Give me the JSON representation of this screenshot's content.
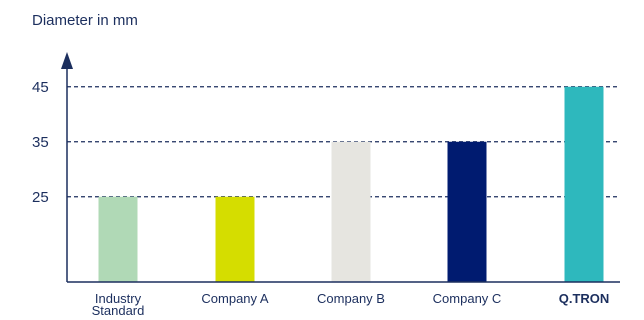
{
  "chart_data": {
    "type": "bar",
    "ylabel": "Diameter in mm",
    "xlabel": "",
    "title": "",
    "categories": [
      [
        "Industry",
        "Standard"
      ],
      [
        "Company A"
      ],
      [
        "Company B"
      ],
      [
        "Company C"
      ],
      [
        "Q.TRON"
      ]
    ],
    "values": [
      25,
      25,
      35,
      35,
      45
    ],
    "bar_colors": [
      "#b0d9b6",
      "#d5dd00",
      "#e6e5e0",
      "#001b70",
      "#2eb8bd"
    ],
    "label_colors": [
      "#1c2f5e",
      "#1c2f5e",
      "#1c2f5e",
      "#1c2f5e",
      "#2eb8bd"
    ],
    "highlight_index": 4,
    "yticks": [
      25,
      35,
      45
    ],
    "ylim": [
      9.5,
      50
    ],
    "grid": "dashed horizontal at ticks",
    "axis_color": "#1c2f5e",
    "grid_color": "#1c2f5e"
  }
}
